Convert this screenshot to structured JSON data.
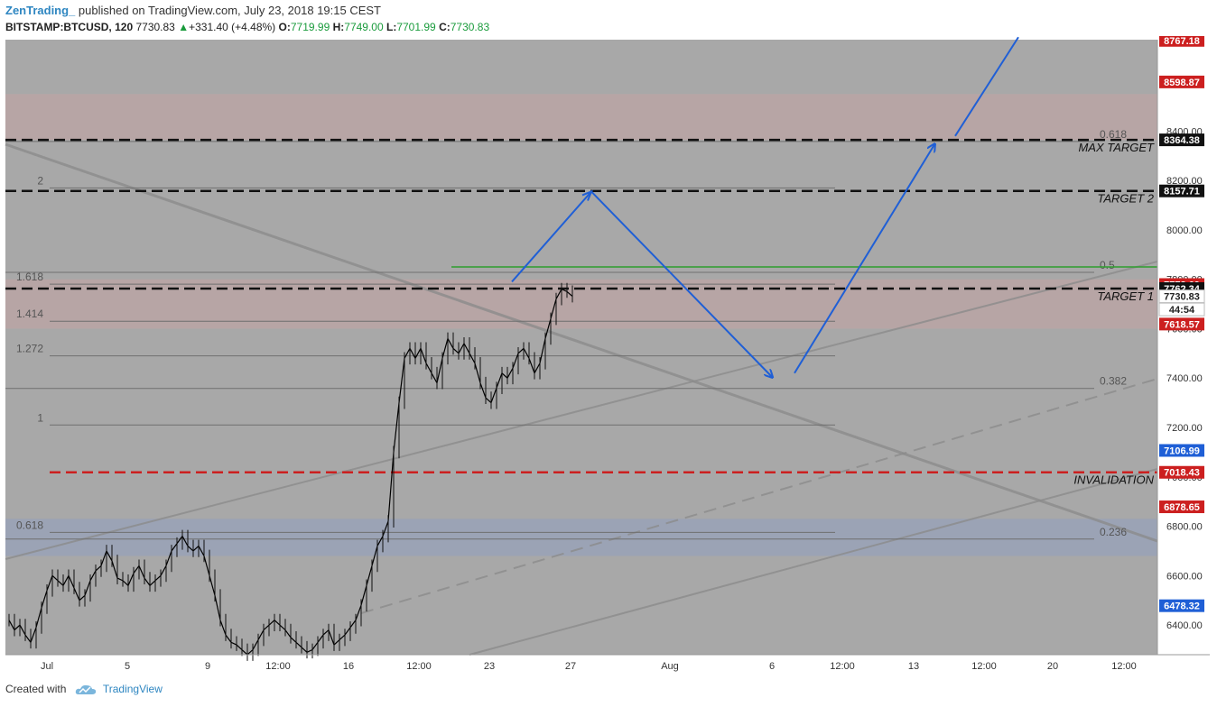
{
  "header": {
    "author": "ZenTrading_",
    "published_text": "published on TradingView.com, July 23, 2018 19:15 CEST",
    "symbol": "BITSTAMP:BTCUSD, 120",
    "last": "7730.83",
    "change": "+331.40 (+4.48%)",
    "open_label": "O:",
    "open": "7719.99",
    "high_label": "H:",
    "high": "7749.00",
    "low_label": "L:",
    "low": "7701.99",
    "close_label": "C:",
    "close": "7730.83"
  },
  "footer": {
    "created_with": "Created with",
    "brand": "TradingView"
  },
  "chart_data": {
    "type": "candlestick",
    "symbol": "BITSTAMP:BTCUSD",
    "interval": "120",
    "ylim": [
      6280,
      8770
    ],
    "y_ticks": [
      "6400.00",
      "6600.00",
      "6800.00",
      "7000.00",
      "7200.00",
      "7400.00",
      "7600.00",
      "7800.00",
      "8000.00",
      "8200.00",
      "8400.00",
      "8600.00"
    ],
    "x_ticks": [
      "Jul",
      "5",
      "9",
      "12:00",
      "16",
      "12:00",
      "23",
      "27",
      "Aug",
      "6",
      "12:00",
      "13",
      "12:00",
      "20",
      "12:00"
    ],
    "colors": {
      "background_overlay": "#9a9a9a",
      "price_up": "#000000",
      "arrow": "#1f5fd6",
      "green_line": "#2e9e2e",
      "red_dashed": "#cc1f1f",
      "black_dashed": "#111111"
    },
    "horizontal_levels": [
      {
        "label": "MAX TARGET",
        "value": 8364.38,
        "style": "black-dashed"
      },
      {
        "label": "TARGET 2",
        "value": 8157.71,
        "style": "black-dashed"
      },
      {
        "label": "TARGET 1",
        "value": 7762.34,
        "style": "black-dashed"
      },
      {
        "label": "INVALIDATION",
        "value": 7018.43,
        "style": "red-dashed"
      }
    ],
    "fib_left": [
      {
        "label": "2",
        "value": 8170
      },
      {
        "label": "1.618",
        "value": 7780
      },
      {
        "label": "1.414",
        "value": 7630
      },
      {
        "label": "1.272",
        "value": 7490
      },
      {
        "label": "1",
        "value": 7210
      },
      {
        "label": "0.618",
        "value": 6775
      }
    ],
    "fib_right": [
      {
        "label": "0.618",
        "value": 8380
      },
      {
        "label": "0.5",
        "value": 7850
      },
      {
        "label": "0.382",
        "value": 7380
      },
      {
        "label": "0.236",
        "value": 6770
      }
    ],
    "price_badges": [
      {
        "text": "8767.18",
        "value": 8767.18,
        "color": "#cc1f1f"
      },
      {
        "text": "8598.87",
        "value": 8598.87,
        "color": "#cc1f1f"
      },
      {
        "text": "8364.38",
        "value": 8364.38,
        "color": "#111111"
      },
      {
        "text": "8157.71",
        "value": 8157.71,
        "color": "#111111"
      },
      {
        "text": "7778.69",
        "value": 7778.69,
        "color": "#cc1f1f"
      },
      {
        "text": "7762.34",
        "value": 7762.34,
        "color": "#111111"
      },
      {
        "text": "7730.83",
        "value": 7730.83,
        "color": "#ffffff"
      },
      {
        "text": "44:54",
        "value": 7678,
        "color": "#ffffff"
      },
      {
        "text": "7618.57",
        "value": 7618.57,
        "color": "#cc1f1f"
      },
      {
        "text": "7106.99",
        "value": 7106.99,
        "color": "#1f5fd6"
      },
      {
        "text": "7018.43",
        "value": 7018.43,
        "color": "#cc1f1f"
      },
      {
        "text": "6878.65",
        "value": 6878.65,
        "color": "#cc1f1f"
      },
      {
        "text": "6478.32",
        "value": 6478.32,
        "color": "#1f5fd6"
      }
    ],
    "projected_path_1": [
      [
        7790,
        567
      ],
      [
        8155,
        655
      ],
      [
        7405,
        855
      ]
    ],
    "projected_path_2": [
      [
        7420,
        880
      ],
      [
        8345,
        1035
      ]
    ],
    "projected_path_3": [
      [
        8380,
        1058
      ],
      [
        8780,
        1128
      ]
    ],
    "price_series": {
      "x_start": 10,
      "x_step": 6,
      "close": [
        6420,
        6380,
        6400,
        6360,
        6330,
        6390,
        6470,
        6540,
        6600,
        6580,
        6560,
        6600,
        6550,
        6500,
        6520,
        6580,
        6620,
        6640,
        6700,
        6660,
        6590,
        6580,
        6560,
        6610,
        6640,
        6590,
        6560,
        6580,
        6600,
        6640,
        6700,
        6730,
        6760,
        6720,
        6700,
        6720,
        6680,
        6600,
        6520,
        6420,
        6360,
        6330,
        6320,
        6300,
        6280,
        6300,
        6340,
        6380,
        6400,
        6420,
        6400,
        6380,
        6350,
        6330,
        6310,
        6290,
        6300,
        6330,
        6360,
        6380,
        6320,
        6340,
        6360,
        6390,
        6420,
        6480,
        6560,
        6640,
        6720,
        6760,
        6820,
        7100,
        7300,
        7480,
        7520,
        7480,
        7520,
        7460,
        7420,
        7380,
        7480,
        7560,
        7520,
        7500,
        7540,
        7500,
        7460,
        7380,
        7320,
        7300,
        7360,
        7420,
        7400,
        7440,
        7500,
        7520,
        7480,
        7420,
        7460,
        7560,
        7640,
        7720,
        7760,
        7750,
        7731
      ]
    }
  }
}
